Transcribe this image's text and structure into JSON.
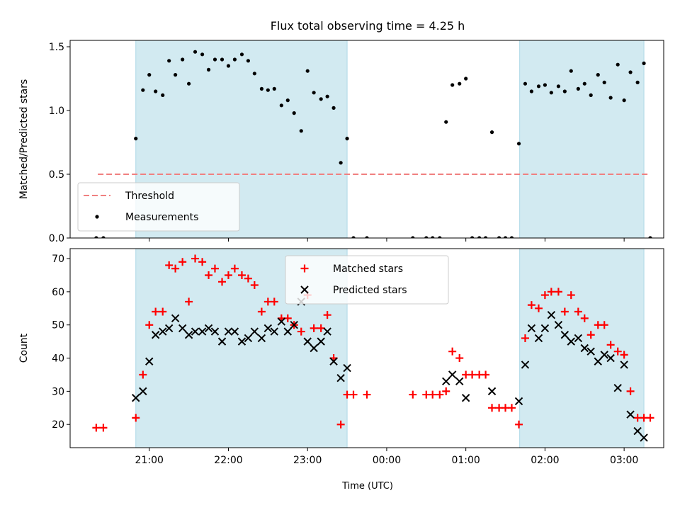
{
  "title": "Flux total observing time = 4.25 h",
  "colors": {
    "shade": "#add8e6",
    "threshold": "#f08080",
    "matched": "#ff0000",
    "predicted": "#000000",
    "measurement": "#000000"
  },
  "x_axis": {
    "label": "Time (UTC)",
    "unit": "hours since 00:00 UTC of first night (values > 24 are next day)",
    "range": [
      20.0,
      27.5
    ],
    "ticks": [
      {
        "value": 21,
        "label": "21:00"
      },
      {
        "value": 22,
        "label": "22:00"
      },
      {
        "value": 23,
        "label": "23:00"
      },
      {
        "value": 24,
        "label": "00:00"
      },
      {
        "value": 25,
        "label": "01:00"
      },
      {
        "value": 26,
        "label": "02:00"
      },
      {
        "value": 27,
        "label": "03:00"
      }
    ]
  },
  "chart_data": [
    {
      "type": "scatter",
      "panel": "top",
      "ylabel": "Matched/Predicted stars",
      "ylim": [
        0,
        1.55
      ],
      "yticks": [
        0.0,
        0.5,
        1.0,
        1.5
      ],
      "ytick_labels": [
        "0.0",
        "0.5",
        "1.0",
        "1.5"
      ],
      "shaded_regions": [
        [
          20.83,
          23.5
        ],
        [
          25.68,
          27.25
        ]
      ],
      "threshold": {
        "value": 0.5,
        "x_range": [
          20.35,
          27.3
        ]
      },
      "legend": {
        "position": "lower-left",
        "entries": [
          {
            "label": "Threshold",
            "marker": "dashed-line"
          },
          {
            "label": "Measurements",
            "marker": "dot"
          }
        ]
      },
      "series": [
        {
          "name": "Measurements",
          "x": [
            20.33,
            20.42,
            20.83,
            20.92,
            21.0,
            21.08,
            21.17,
            21.25,
            21.33,
            21.42,
            21.5,
            21.58,
            21.67,
            21.75,
            21.83,
            21.92,
            22.0,
            22.08,
            22.17,
            22.25,
            22.33,
            22.42,
            22.5,
            22.58,
            22.67,
            22.75,
            22.83,
            22.92,
            23.0,
            23.08,
            23.17,
            23.25,
            23.33,
            23.42,
            23.5,
            23.58,
            23.75,
            24.33,
            24.5,
            24.58,
            24.67,
            24.75,
            24.83,
            24.92,
            25.0,
            25.08,
            25.17,
            25.25,
            25.33,
            25.42,
            25.5,
            25.58,
            25.67,
            25.75,
            25.83,
            25.92,
            26.0,
            26.08,
            26.17,
            26.25,
            26.33,
            26.42,
            26.5,
            26.58,
            26.67,
            26.75,
            26.83,
            26.92,
            27.0,
            27.08,
            27.17,
            27.25,
            27.33
          ],
          "y": [
            0.0,
            0.0,
            0.78,
            1.16,
            1.28,
            1.15,
            1.12,
            1.39,
            1.28,
            1.4,
            1.21,
            1.46,
            1.44,
            1.32,
            1.4,
            1.4,
            1.35,
            1.4,
            1.44,
            1.39,
            1.29,
            1.17,
            1.16,
            1.17,
            1.04,
            1.08,
            0.98,
            0.84,
            1.31,
            1.14,
            1.09,
            1.11,
            1.02,
            0.59,
            0.78,
            0.0,
            0.0,
            0.0,
            0.0,
            0.0,
            0.0,
            0.91,
            1.2,
            1.21,
            1.25,
            0.0,
            0.0,
            0.0,
            0.83,
            0.0,
            0.0,
            0.0,
            0.74,
            1.21,
            1.15,
            1.19,
            1.2,
            1.14,
            1.19,
            1.15,
            1.31,
            1.17,
            1.21,
            1.12,
            1.28,
            1.22,
            1.1,
            1.36,
            1.08,
            1.3,
            1.22,
            1.37,
            0.0
          ]
        }
      ]
    },
    {
      "type": "scatter",
      "panel": "bottom",
      "ylabel": "Count",
      "ylim": [
        13,
        73
      ],
      "yticks": [
        20,
        30,
        40,
        50,
        60,
        70
      ],
      "ytick_labels": [
        "20",
        "30",
        "40",
        "50",
        "60",
        "70"
      ],
      "shaded_regions": [
        [
          20.83,
          23.5
        ],
        [
          25.68,
          27.25
        ]
      ],
      "legend": {
        "position": "top-center",
        "entries": [
          {
            "label": "Matched stars",
            "marker": "plus"
          },
          {
            "label": "Predicted stars",
            "marker": "x"
          }
        ]
      },
      "series": [
        {
          "name": "Matched stars",
          "x": [
            20.33,
            20.42,
            20.83,
            20.92,
            21.0,
            21.08,
            21.17,
            21.25,
            21.33,
            21.42,
            21.5,
            21.58,
            21.67,
            21.75,
            21.83,
            21.92,
            22.0,
            22.08,
            22.17,
            22.25,
            22.33,
            22.42,
            22.5,
            22.58,
            22.67,
            22.75,
            22.83,
            22.92,
            23.0,
            23.08,
            23.17,
            23.25,
            23.33,
            23.42,
            23.5,
            23.58,
            23.75,
            24.33,
            24.5,
            24.58,
            24.67,
            24.75,
            24.83,
            24.92,
            25.0,
            25.08,
            25.17,
            25.25,
            25.33,
            25.42,
            25.5,
            25.58,
            25.67,
            25.75,
            25.83,
            25.92,
            26.0,
            26.08,
            26.17,
            26.25,
            26.33,
            26.42,
            26.5,
            26.58,
            26.67,
            26.75,
            26.83,
            26.92,
            27.0,
            27.08,
            27.17,
            27.25,
            27.33
          ],
          "y": [
            19,
            19,
            22,
            35,
            50,
            54,
            54,
            68,
            67,
            69,
            57,
            70,
            69,
            65,
            67,
            63,
            65,
            67,
            65,
            64,
            62,
            54,
            57,
            57,
            52,
            52,
            50,
            48,
            59,
            49,
            49,
            53,
            40,
            20,
            29,
            29,
            29,
            29,
            29,
            29,
            29,
            30,
            42,
            40,
            35,
            35,
            35,
            35,
            25,
            25,
            25,
            25,
            20,
            46,
            56,
            55,
            59,
            60,
            60,
            54,
            59,
            54,
            52,
            47,
            50,
            50,
            44,
            42,
            41,
            30,
            22,
            22,
            22
          ]
        },
        {
          "name": "Predicted stars",
          "x": [
            20.83,
            20.92,
            21.0,
            21.08,
            21.17,
            21.25,
            21.33,
            21.42,
            21.5,
            21.58,
            21.67,
            21.75,
            21.83,
            21.92,
            22.0,
            22.08,
            22.17,
            22.25,
            22.33,
            22.42,
            22.5,
            22.58,
            22.67,
            22.75,
            22.83,
            22.92,
            23.0,
            23.08,
            23.17,
            23.25,
            23.33,
            23.42,
            23.5,
            24.75,
            24.83,
            24.92,
            25.0,
            25.33,
            25.67,
            25.75,
            25.83,
            25.92,
            26.0,
            26.08,
            26.17,
            26.25,
            26.33,
            26.42,
            26.5,
            26.58,
            26.67,
            26.75,
            26.83,
            26.92,
            27.0,
            27.08,
            27.17,
            27.25
          ],
          "y": [
            28,
            30,
            39,
            47,
            48,
            49,
            52,
            49,
            47,
            48,
            48,
            49,
            48,
            45,
            48,
            48,
            45,
            46,
            48,
            46,
            49,
            48,
            51,
            48,
            50,
            57,
            45,
            43,
            45,
            48,
            39,
            34,
            37,
            33,
            35,
            33,
            28,
            30,
            27,
            38,
            49,
            46,
            49,
            53,
            50,
            47,
            45,
            46,
            43,
            42,
            39,
            41,
            40,
            31,
            38,
            23,
            18,
            16
          ]
        }
      ]
    }
  ]
}
